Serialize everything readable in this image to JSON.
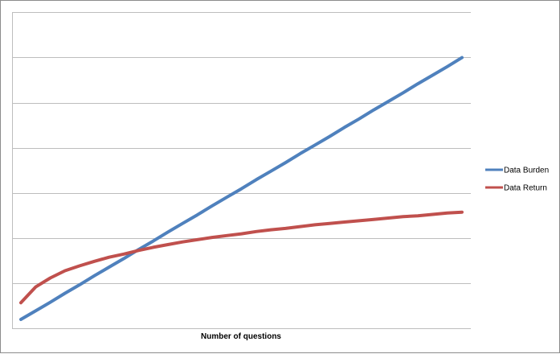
{
  "chart_data": {
    "type": "line",
    "xlabel": "Number of questions",
    "ylabel": "",
    "title": "",
    "x": [
      0,
      1,
      2,
      3,
      4,
      5,
      6,
      7,
      8,
      9,
      10,
      11,
      12,
      13,
      14,
      15,
      16,
      17,
      18,
      19,
      20,
      21,
      22,
      23,
      24,
      25,
      26,
      27,
      28,
      29,
      30
    ],
    "ylim": [
      0,
      7
    ],
    "grid": true,
    "legend": "right",
    "series": [
      {
        "name": "Data Burden",
        "color": "#4f81bd",
        "values": [
          0,
          0.19,
          0.38,
          0.58,
          0.77,
          0.97,
          1.16,
          1.35,
          1.55,
          1.74,
          1.94,
          2.13,
          2.32,
          2.52,
          2.71,
          2.9,
          3.1,
          3.29,
          3.48,
          3.68,
          3.87,
          4.06,
          4.26,
          4.45,
          4.65,
          4.84,
          5.03,
          5.23,
          5.42,
          5.61,
          5.81
        ]
      },
      {
        "name": "Data Return",
        "color": "#c0504d",
        "values": [
          0.37,
          0.72,
          0.92,
          1.08,
          1.19,
          1.29,
          1.38,
          1.45,
          1.53,
          1.6,
          1.66,
          1.72,
          1.77,
          1.82,
          1.86,
          1.9,
          1.95,
          1.99,
          2.02,
          2.06,
          2.1,
          2.13,
          2.16,
          2.19,
          2.22,
          2.25,
          2.28,
          2.3,
          2.33,
          2.36,
          2.38
        ]
      }
    ]
  }
}
